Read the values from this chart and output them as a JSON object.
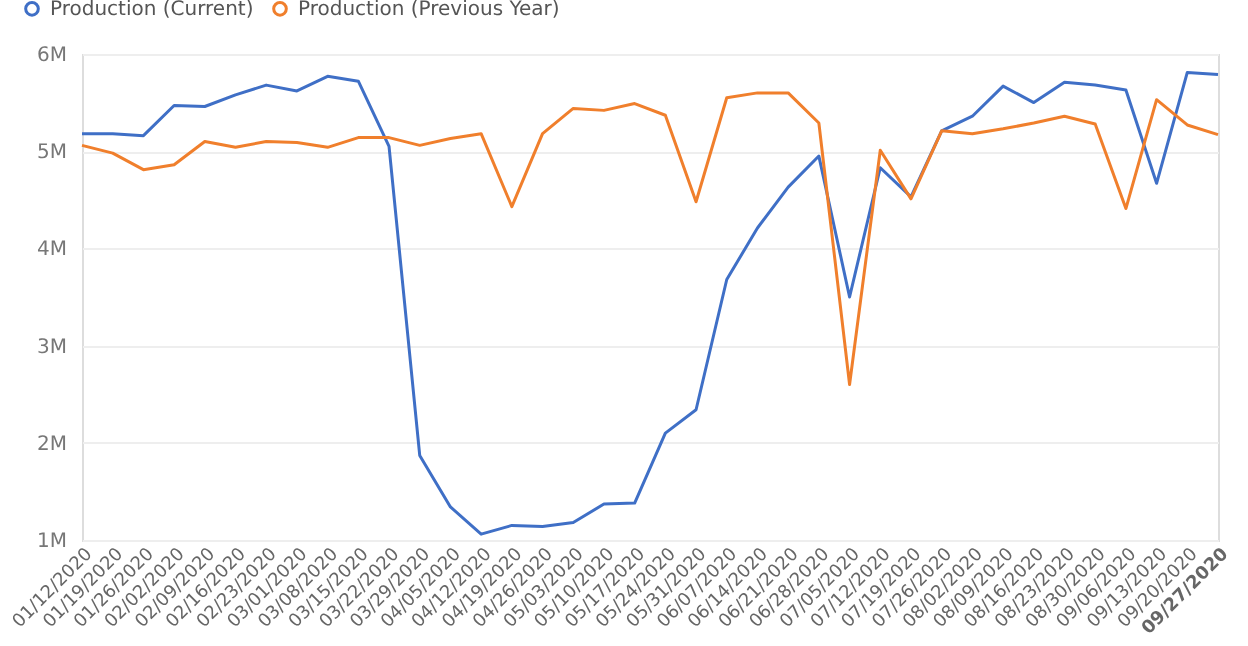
{
  "chart_data": {
    "type": "line",
    "categories": [
      "01/12/2020",
      "01/19/2020",
      "01/26/2020",
      "02/02/2020",
      "02/09/2020",
      "02/16/2020",
      "02/23/2020",
      "03/01/2020",
      "03/08/2020",
      "03/15/2020",
      "03/22/2020",
      "03/29/2020",
      "04/05/2020",
      "04/12/2020",
      "04/19/2020",
      "04/26/2020",
      "05/03/2020",
      "05/10/2020",
      "05/17/2020",
      "05/24/2020",
      "05/31/2020",
      "06/07/2020",
      "06/14/2020",
      "06/21/2020",
      "06/28/2020",
      "07/05/2020",
      "07/12/2020",
      "07/19/2020",
      "07/26/2020",
      "08/02/2020",
      "08/09/2020",
      "08/16/2020",
      "08/23/2020",
      "08/30/2020",
      "09/06/2020",
      "09/13/2020",
      "09/20/2020",
      "09/27/2020"
    ],
    "series": [
      {
        "name": "Production (Current)",
        "color": "#3f6fc6",
        "values": [
          5.18,
          5.18,
          5.16,
          5.47,
          5.46,
          5.58,
          5.68,
          5.62,
          5.77,
          5.72,
          5.05,
          1.87,
          1.34,
          1.06,
          1.15,
          1.14,
          1.18,
          1.37,
          1.38,
          2.1,
          2.34,
          3.68,
          4.21,
          4.63,
          4.95,
          3.5,
          4.83,
          4.53,
          5.21,
          5.36,
          5.67,
          5.5,
          5.71,
          5.68,
          5.63,
          4.67,
          5.81,
          5.79
        ]
      },
      {
        "name": "Production (Previous Year)",
        "color": "#f07f2c",
        "values": [
          5.06,
          4.98,
          4.81,
          4.86,
          5.1,
          5.04,
          5.1,
          5.09,
          5.04,
          5.14,
          5.14,
          5.06,
          5.13,
          5.18,
          4.43,
          5.18,
          5.44,
          5.42,
          5.49,
          5.37,
          4.48,
          5.55,
          5.6,
          5.6,
          5.29,
          2.6,
          5.01,
          4.51,
          5.21,
          5.18,
          5.23,
          5.29,
          5.36,
          5.28,
          4.41,
          5.53,
          5.27,
          5.17
        ]
      }
    ],
    "ylim": [
      1,
      6
    ],
    "yticks": [
      {
        "value": 1,
        "label": "1M"
      },
      {
        "value": 2,
        "label": "2M"
      },
      {
        "value": 3,
        "label": "3M"
      },
      {
        "value": 4,
        "label": "4M"
      },
      {
        "value": 5,
        "label": "5M"
      },
      {
        "value": 6,
        "label": "6M"
      }
    ],
    "grid": "y",
    "legend": "top left",
    "line_style": "solid",
    "marker": "none"
  }
}
